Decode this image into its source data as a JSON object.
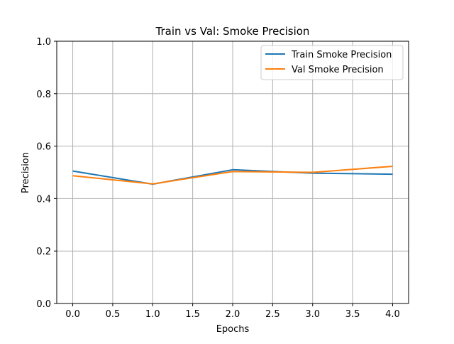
{
  "chart_data": {
    "type": "line",
    "title": "Train vs Val: Smoke Precision",
    "xlabel": "Epochs",
    "ylabel": "Precision",
    "x": [
      0,
      1,
      2,
      3,
      4
    ],
    "xlim": [
      -0.2,
      4.2
    ],
    "ylim": [
      0,
      1
    ],
    "xticks": [
      0,
      0.5,
      1,
      1.5,
      2,
      2.5,
      3,
      3.5,
      4
    ],
    "xtick_labels": [
      "0.0",
      "0.5",
      "1.0",
      "1.5",
      "2.0",
      "2.5",
      "3.0",
      "3.5",
      "4.0"
    ],
    "yticks": [
      0,
      0.2,
      0.4,
      0.6,
      0.8,
      1.0
    ],
    "ytick_labels": [
      "0.0",
      "0.2",
      "0.4",
      "0.6",
      "0.8",
      "1.0"
    ],
    "grid": true,
    "legend_position": "top-right",
    "series": [
      {
        "name": "Train Smoke Precision",
        "color": "#1f77b4",
        "values": [
          0.505,
          0.455,
          0.51,
          0.497,
          0.493
        ]
      },
      {
        "name": "Val Smoke Precision",
        "color": "#ff7f0e",
        "values": [
          0.487,
          0.456,
          0.503,
          0.5,
          0.523
        ]
      }
    ]
  }
}
